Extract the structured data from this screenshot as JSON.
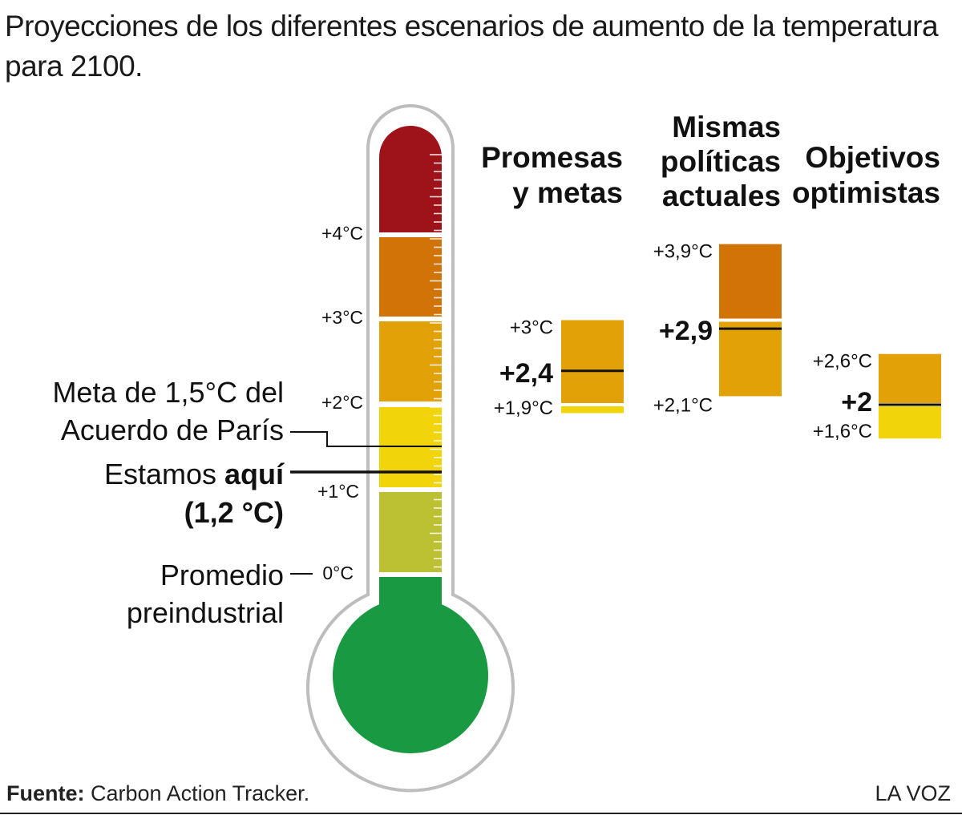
{
  "title": "Proyecciones de los diferentes escenarios de aumento de la temperatura para 2100.",
  "source_label": "Fuente:",
  "source_text": "Carbon Action Tracker.",
  "brand": "LA VOZ",
  "colors": {
    "band_4_plus": "#9e1219",
    "band_3_4": "#d27308",
    "band_2_3": "#e2a106",
    "band_1_2": "#f1d40a",
    "band_0_1": "#bcc033",
    "bulb": "#199a42",
    "outline": "#bdbdbd",
    "ink": "#111111"
  },
  "chart_data": {
    "type": "range",
    "unit": "°C",
    "y_ticks": [
      "+4°C",
      "+3°C",
      "+2°C",
      "+1°C",
      "0°C"
    ],
    "thermometer": {
      "markers": [
        {
          "label": "Meta de 1,5°C del Acuerdo de París",
          "value": 1.5
        },
        {
          "label_prefix": "Estamos ",
          "label_emph": "aquí",
          "label_value": "(1,2 °C)",
          "value": 1.2
        },
        {
          "label": "Promedio preindustrial",
          "value": 0
        }
      ]
    },
    "scenarios": [
      {
        "name": "Promesas y metas",
        "low": 1.9,
        "high": 3.0,
        "central": 2.4,
        "low_label": "+1,9°C",
        "high_label": "+3°C",
        "central_label": "+2,4"
      },
      {
        "name": "Mismas políticas actuales",
        "low": 2.1,
        "high": 3.9,
        "central": 2.9,
        "low_label": "+2,1°C",
        "high_label": "+3,9°C",
        "central_label": "+2,9"
      },
      {
        "name": "Objetivos optimistas",
        "low": 1.6,
        "high": 2.6,
        "central": 2.0,
        "low_label": "+1,6°C",
        "high_label": "+2,6°C",
        "central_label": "+2"
      }
    ]
  }
}
